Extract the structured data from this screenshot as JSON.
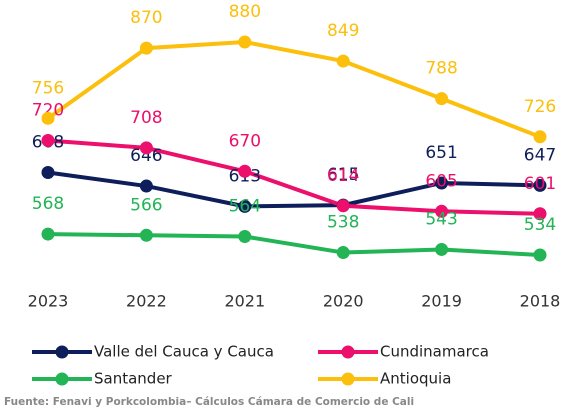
{
  "chart_data": {
    "type": "line",
    "categories": [
      "2023",
      "2022",
      "2021",
      "2020",
      "2019",
      "2018"
    ],
    "series": [
      {
        "name": "Valle del Cauca y Cauca",
        "color": "#0e1e5b",
        "values": [
          668,
          646,
          613,
          615,
          651,
          647
        ]
      },
      {
        "name": "Cundinamarca",
        "color": "#ec0f6b",
        "values": [
          720,
          708,
          670,
          614,
          605,
          601
        ]
      },
      {
        "name": "Santander",
        "color": "#22b455",
        "values": [
          568,
          566,
          564,
          538,
          543,
          534
        ]
      },
      {
        "name": "Antioquia",
        "color": "#fbbf0c",
        "values": [
          756,
          870,
          880,
          849,
          788,
          726
        ]
      }
    ],
    "source": "Fuente: Fenavi y Porkcolombia– Cálculos Cámara de Comercio de Cali"
  }
}
